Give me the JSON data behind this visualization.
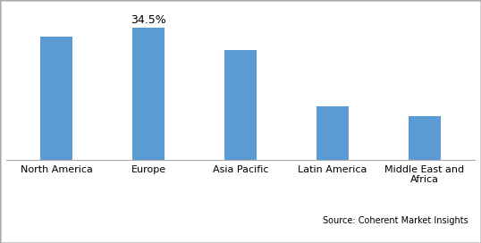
{
  "categories": [
    "North America",
    "Europe",
    "Asia Pacific",
    "Latin America",
    "Middle East and\nAfrica"
  ],
  "values": [
    32.0,
    34.5,
    28.5,
    14.0,
    11.5
  ],
  "bar_color": "#5b9bd5",
  "label_text": "34.5%",
  "label_bar_index": 1,
  "ylim": [
    0,
    40
  ],
  "source_text": "Source: Coherent Market Insights",
  "background_color": "#ffffff",
  "bar_width": 0.35,
  "border_color": "#aaaaaa",
  "tick_fontsize": 8,
  "label_fontsize": 9,
  "source_fontsize": 7
}
